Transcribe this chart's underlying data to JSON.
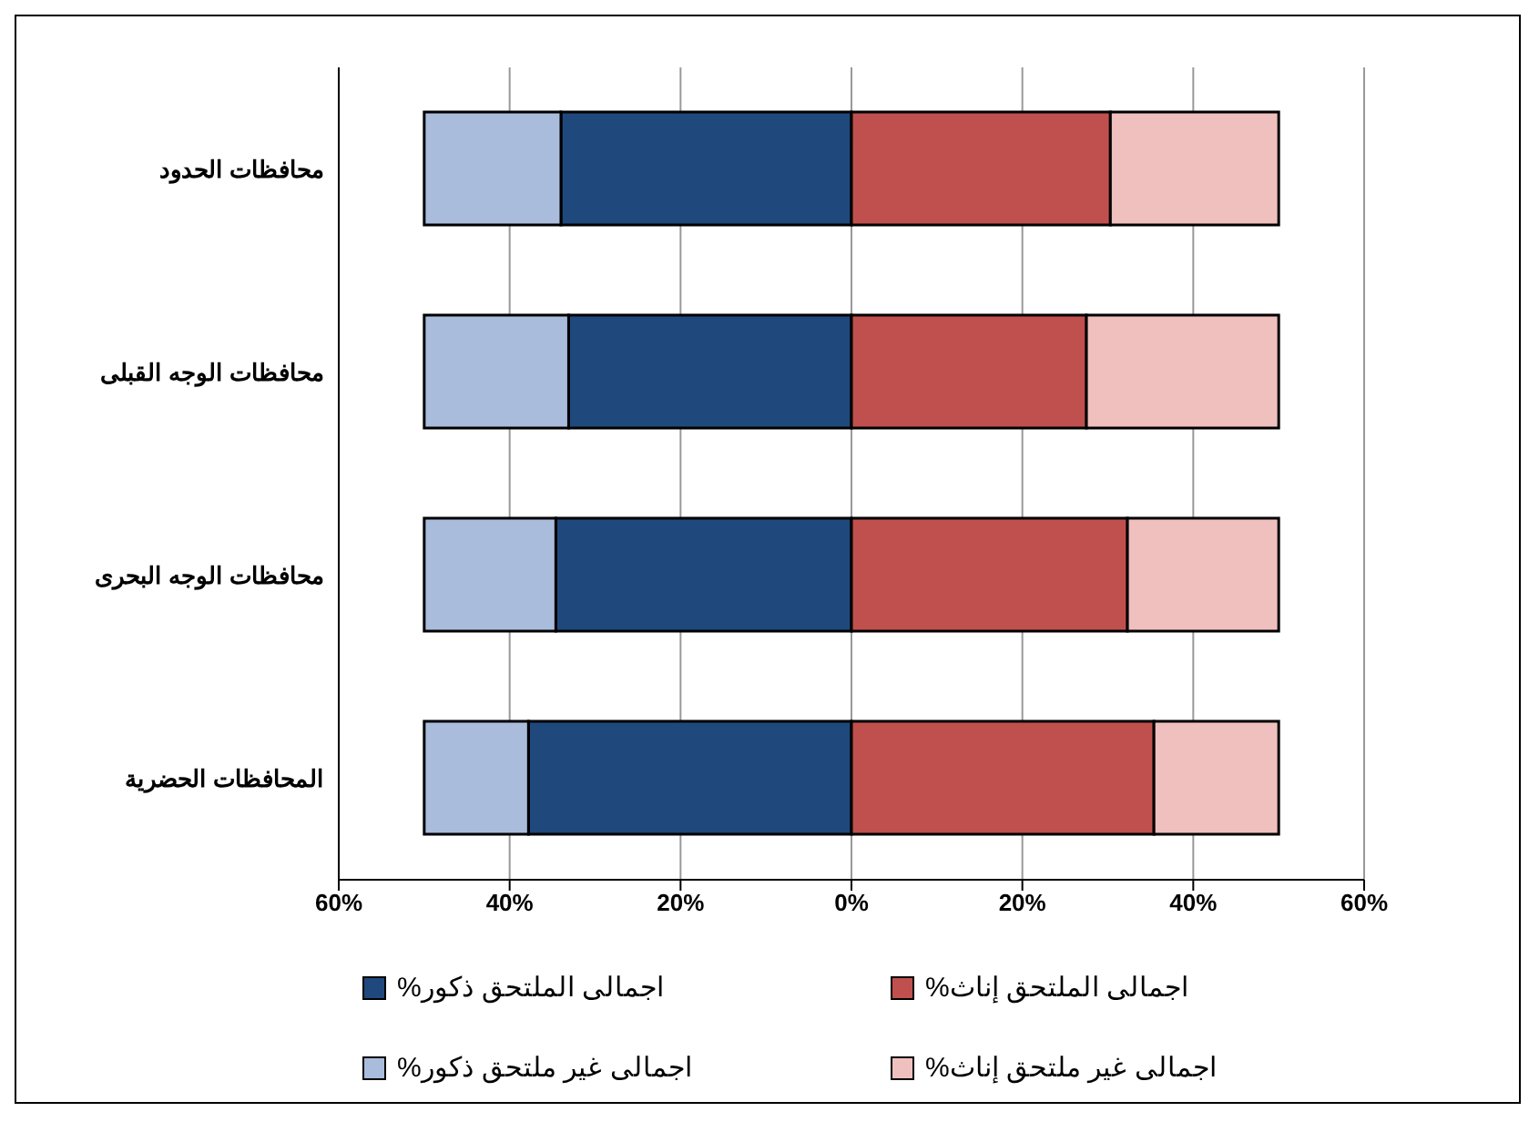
{
  "chart_data": {
    "type": "bar",
    "orientation": "horizontal",
    "stacked": true,
    "categories": [
      "محافظات الحدود",
      "محافظات الوجه القبلى",
      "محافظات الوجه البحرى",
      "المحافظات الحضرية"
    ],
    "series": [
      {
        "name": "اجمالى الملتحق ذكور%",
        "color": "#1f497d",
        "values": [
          -34.0,
          -33.1,
          -34.6,
          -37.8
        ]
      },
      {
        "name": "اجمالى غير ملتحق ذكور%",
        "color": "#a9bcdc",
        "values": [
          -16.0,
          -16.9,
          -15.4,
          -12.2
        ]
      },
      {
        "name": "اجمالى الملتحق إناث%",
        "color": "#c0504d",
        "values": [
          30.3,
          27.5,
          32.3,
          35.4
        ]
      },
      {
        "name": "اجمالى غير ملتحق إناث%",
        "color": "#f0c0be",
        "values": [
          19.7,
          22.5,
          17.7,
          14.6
        ]
      }
    ],
    "xlim": [
      -60,
      60
    ],
    "xticks": [
      {
        "value": -60,
        "label": "60%"
      },
      {
        "value": -40,
        "label": "40%"
      },
      {
        "value": -20,
        "label": "20%"
      },
      {
        "value": 0,
        "label": "0%"
      },
      {
        "value": 20,
        "label": "20%"
      },
      {
        "value": 40,
        "label": "40%"
      },
      {
        "value": 60,
        "label": "60%"
      }
    ],
    "grid": "x",
    "legend": "bottom"
  }
}
